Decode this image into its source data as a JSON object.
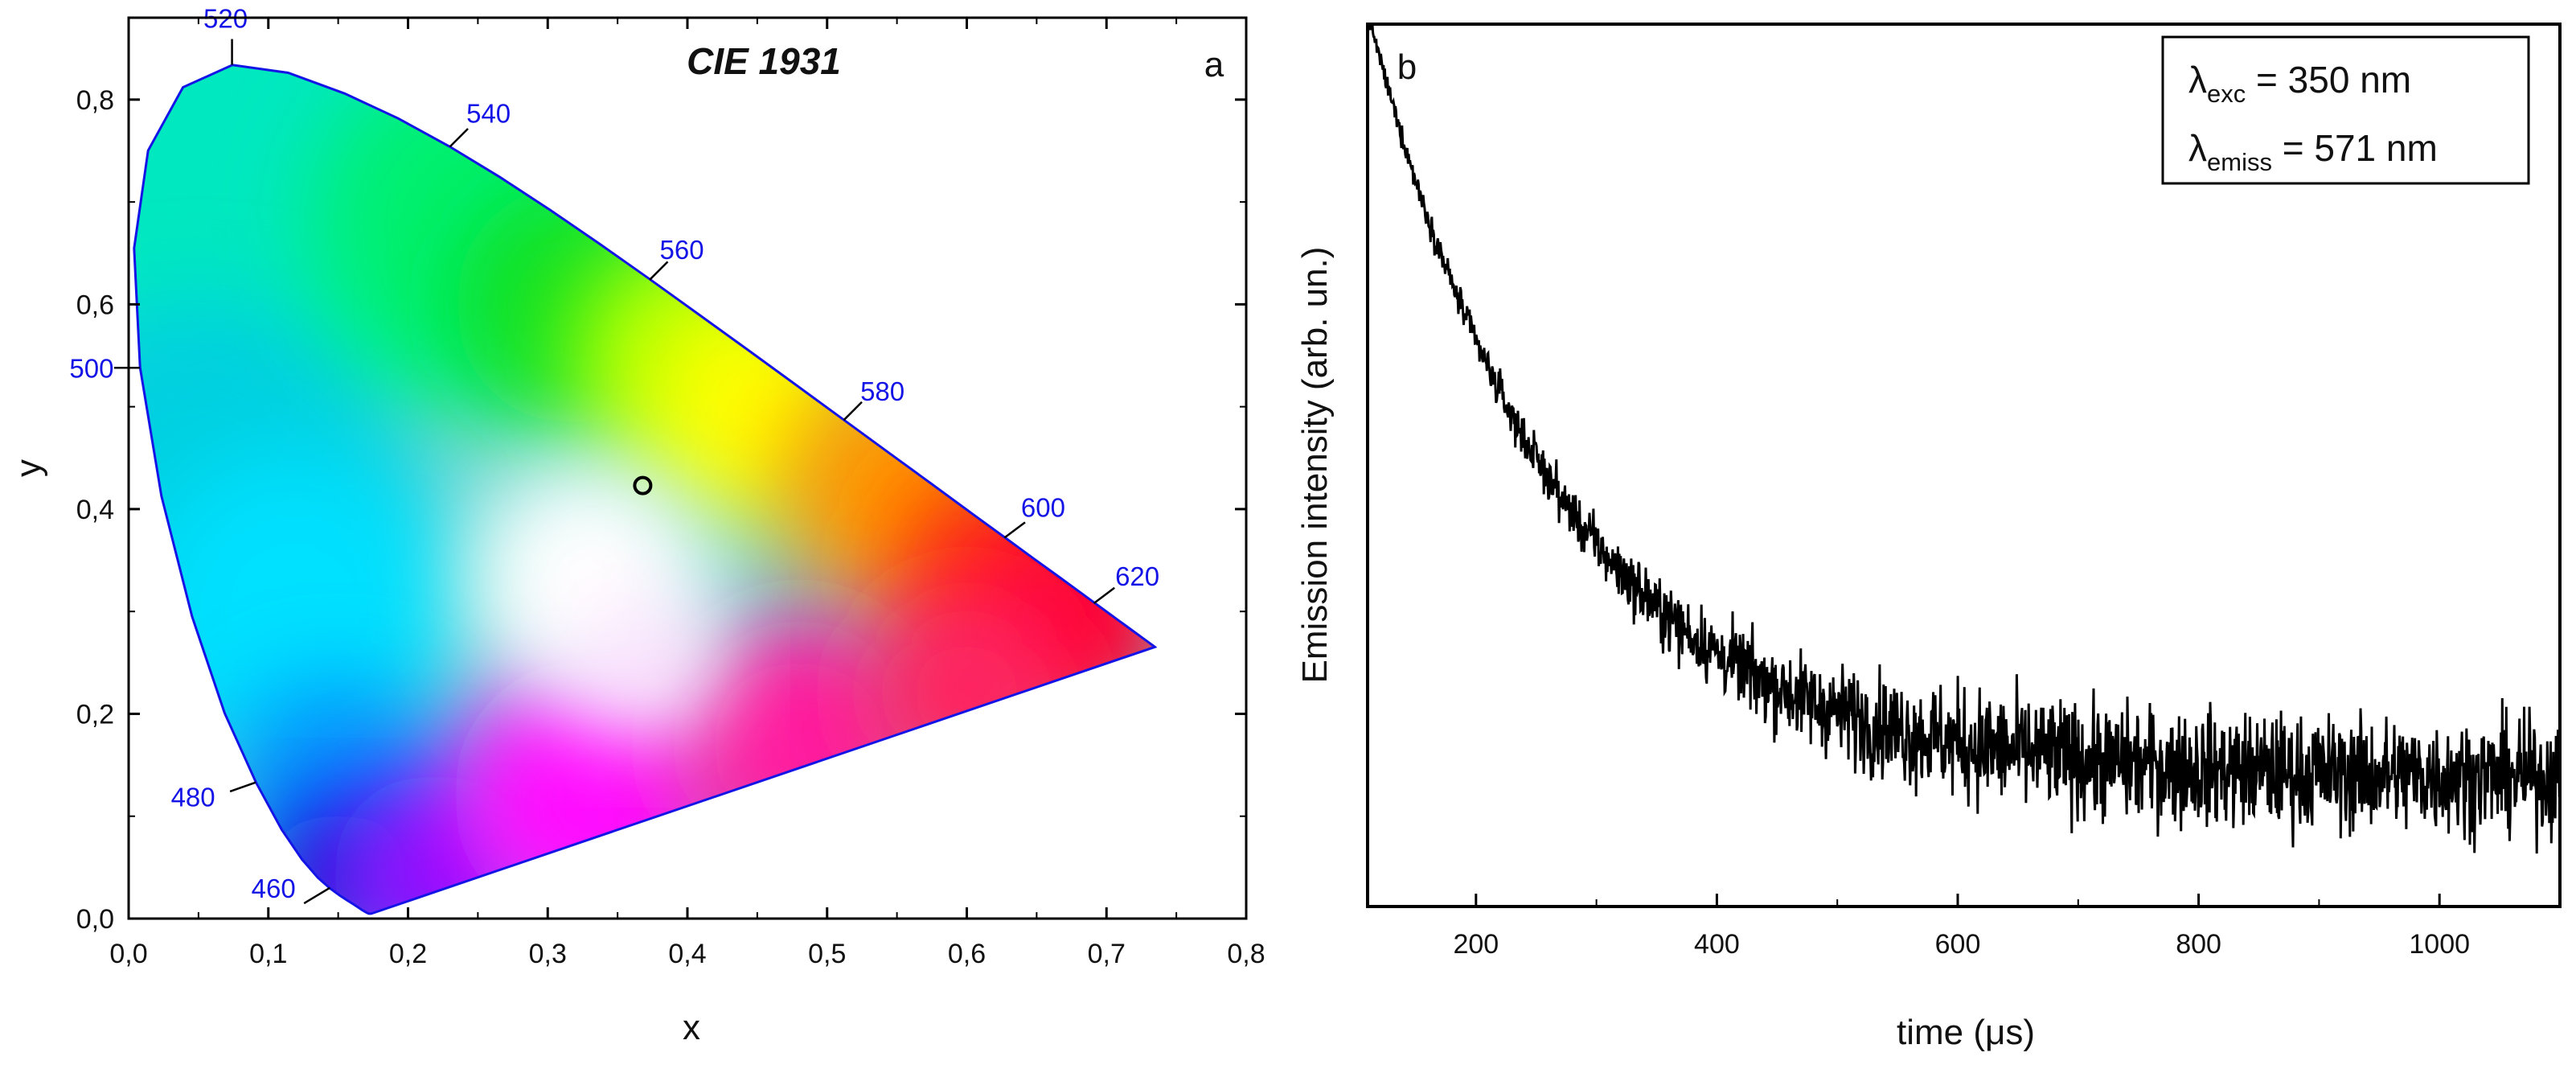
{
  "figure": {
    "panel_a_label": "a",
    "panel_b_label": "b"
  },
  "chart_data": [
    {
      "type": "scatter",
      "title": "CIE 1931",
      "xlabel": "x",
      "ylabel": "y",
      "xlim": [
        0.0,
        0.8
      ],
      "ylim": [
        0.0,
        0.88
      ],
      "x_ticks": [
        "0,0",
        "0,1",
        "0,2",
        "0,3",
        "0,4",
        "0,5",
        "0,6",
        "0,7",
        "0,8"
      ],
      "y_ticks": [
        "0,0",
        "0,2",
        "0,4",
        "0,6",
        "0,8"
      ],
      "grid": false,
      "locus_color": "#1414e6",
      "wavelength_labels": [
        {
          "label": "460",
          "x": 0.144,
          "y": 0.03
        },
        {
          "label": "480",
          "x": 0.091,
          "y": 0.133
        },
        {
          "label": "500",
          "x": 0.008,
          "y": 0.538
        },
        {
          "label": "520",
          "x": 0.074,
          "y": 0.834
        },
        {
          "label": "540",
          "x": 0.23,
          "y": 0.754
        },
        {
          "label": "560",
          "x": 0.373,
          "y": 0.624
        },
        {
          "label": "580",
          "x": 0.512,
          "y": 0.487
        },
        {
          "label": "600",
          "x": 0.627,
          "y": 0.372
        },
        {
          "label": "620",
          "x": 0.691,
          "y": 0.308
        }
      ],
      "series": [
        {
          "x": [
            0.368
          ],
          "y": [
            0.423
          ],
          "marker": "open-circle"
        }
      ]
    },
    {
      "type": "line",
      "xlabel": "time (μs)",
      "ylabel": "Emission intensity (arb. un.)",
      "xlim": [
        110,
        1100
      ],
      "ylim": [
        0,
        1
      ],
      "x_ticks": [
        "200",
        "400",
        "600",
        "800",
        "1000"
      ],
      "y_ticks": [],
      "grid": false,
      "decay": {
        "baseline": 0.145,
        "amplitude": 0.87,
        "tau_us": 160
      },
      "legend": {
        "position": "top-right",
        "line1_symbol": "λ",
        "line1_sub": "exc",
        "line1_value": " = 350 nm",
        "line2_symbol": "λ",
        "line2_sub": "emiss",
        "line2_value": " = 571 nm"
      },
      "series": [
        {
          "color": "#000000"
        }
      ]
    }
  ]
}
